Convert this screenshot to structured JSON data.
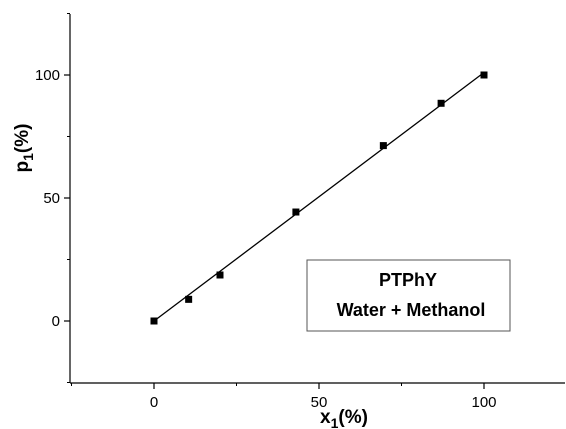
{
  "chart_data": {
    "type": "scatter",
    "xlabel": {
      "main": "x",
      "sub": "1",
      "rest": "(%)"
    },
    "ylabel": {
      "main": "p",
      "sub": "1",
      "rest": "(%)"
    },
    "xlim": [
      -25,
      125
    ],
    "ylim": [
      -25,
      125
    ],
    "x_ticks": [
      0,
      50,
      100
    ],
    "y_ticks": [
      0,
      50,
      100
    ],
    "grid": false,
    "legend": {
      "lines": [
        "PTPhY",
        "Water + Methanol"
      ],
      "placement": "lower-right"
    },
    "series": [
      {
        "marker": "square",
        "color": "#000000",
        "x": [
          0,
          10.5,
          20,
          43,
          69.5,
          87,
          100
        ],
        "y": [
          0,
          8.8,
          18.7,
          44.3,
          71.3,
          88.5,
          100
        ]
      }
    ],
    "fit_line": {
      "color": "#000000",
      "x": [
        0,
        100
      ],
      "y": [
        0,
        101
      ]
    }
  }
}
